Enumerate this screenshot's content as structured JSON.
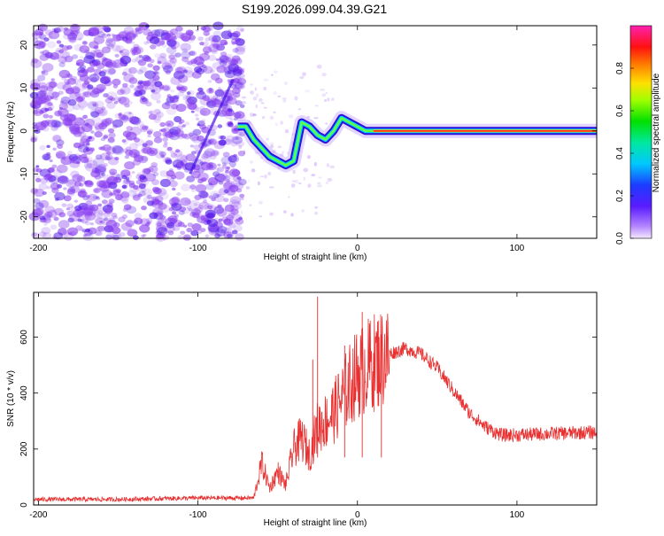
{
  "title": "S199.2026.099.04.39.G21",
  "colors": {
    "snr_line": "#e83030",
    "spectrum_speckle": "#8a3ff0",
    "ridge_core": "#ff2020",
    "frame": "#000000"
  },
  "chart_data": [
    {
      "type": "heatmap",
      "name": "spectrogram",
      "xlabel": "Height of straight line (km)",
      "ylabel": "Frequency (Hz)",
      "xlim": [
        -203,
        150
      ],
      "ylim": [
        -25,
        24.5
      ],
      "xticks": [
        -200,
        -100,
        0,
        100
      ],
      "yticks": [
        -20,
        -10,
        0,
        10,
        20
      ],
      "colorbar": {
        "label": "Normalized spectral amplitude",
        "range": [
          0,
          1
        ],
        "ticks": [
          0.0,
          0.2,
          0.4,
          0.6,
          0.8
        ]
      },
      "ridge": {
        "description_points_x": [
          -75,
          -70,
          -65,
          -60,
          -55,
          -50,
          -45,
          -40,
          -35,
          -30,
          -25,
          -20,
          -15,
          -10,
          -5,
          0,
          5,
          10,
          150
        ],
        "description_points_y": [
          1,
          1,
          -2,
          -4,
          -6,
          -7,
          -8,
          -7,
          2,
          1,
          -1,
          -2,
          0,
          3,
          2,
          1,
          0,
          0,
          0
        ]
      }
    },
    {
      "type": "line",
      "name": "snr",
      "xlabel": "Height of straight line (km)",
      "ylabel": "SNR (10 * v/v)",
      "xlim": [
        -203,
        150
      ],
      "ylim": [
        0,
        760
      ],
      "xticks": [
        -200,
        -100,
        0,
        100
      ],
      "yticks": [
        0,
        200,
        400,
        600
      ],
      "envelope": {
        "x": [
          -203,
          -150,
          -100,
          -65,
          -60,
          -55,
          -50,
          -45,
          -40,
          -35,
          -30,
          -25,
          -20,
          -15,
          -10,
          -5,
          0,
          10,
          20,
          30,
          40,
          50,
          60,
          70,
          80,
          90,
          100,
          120,
          150
        ],
        "y": [
          20,
          20,
          25,
          25,
          150,
          60,
          120,
          70,
          200,
          240,
          180,
          280,
          300,
          330,
          380,
          430,
          470,
          510,
          540,
          560,
          540,
          490,
          410,
          330,
          280,
          250,
          250,
          255,
          260
        ]
      },
      "spikes": [
        {
          "x": -25,
          "y": 745
        },
        {
          "x": -28,
          "y": 520
        },
        {
          "x": 3,
          "y": 690
        },
        {
          "x": -8,
          "y": 570
        },
        {
          "x": 15,
          "y": 610
        }
      ]
    }
  ]
}
